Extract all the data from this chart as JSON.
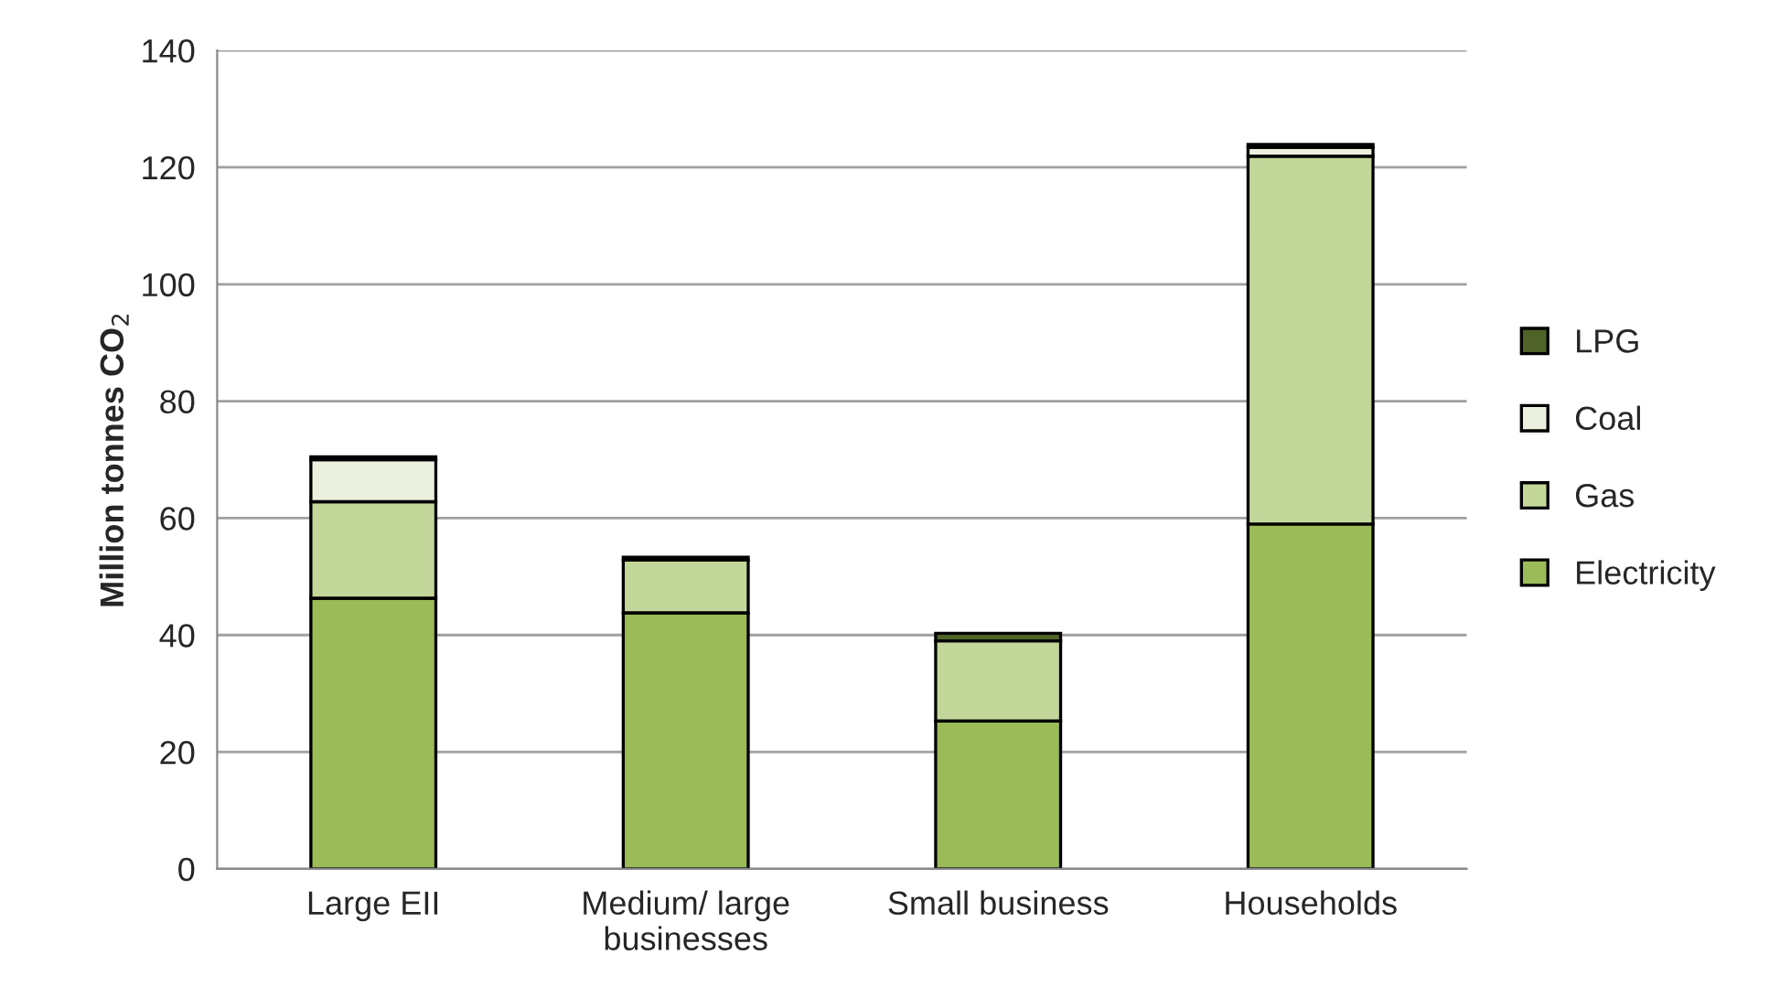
{
  "chart_data": {
    "type": "bar",
    "stacked": true,
    "ylabel": "Million tonnes CO$_{2}$",
    "categories": [
      "Large EII",
      "Medium/ large\nbusinesses",
      "Small business",
      "Households"
    ],
    "series": [
      {
        "name": "Electricity",
        "color": "#9bbb59",
        "values": [
          46.3,
          43.8,
          25.3,
          59
        ]
      },
      {
        "name": "Gas",
        "color": "#c4d79b",
        "values": [
          16.5,
          9,
          13.7,
          62.9
        ]
      },
      {
        "name": "Coal",
        "color": "#ebf1de",
        "values": [
          7.2,
          null,
          null,
          1.5
        ]
      },
      {
        "name": "LPG",
        "color": "#4f6228",
        "values": [
          0.5,
          0.5,
          1.3,
          0.5
        ]
      }
    ],
    "ylim": [
      0,
      140
    ],
    "yticks": [
      0,
      20,
      40,
      60,
      80,
      100,
      120,
      140
    ],
    "grid": "y",
    "legend": "right"
  }
}
